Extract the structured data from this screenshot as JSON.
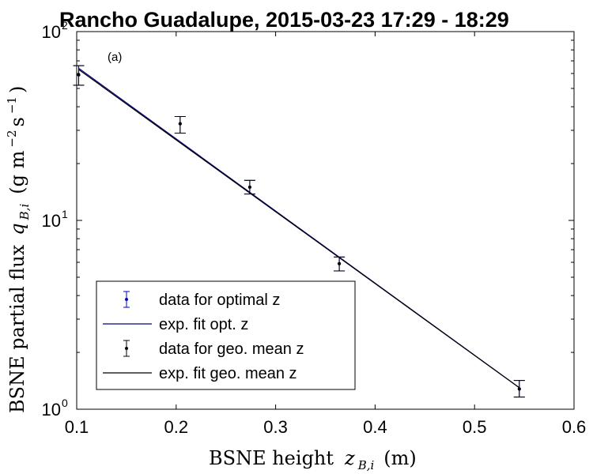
{
  "chart_data": {
    "type": "scatter",
    "title": "Rancho Guadalupe, 2015-03-23 17:29 - 18:29",
    "panel_label": "(a)",
    "xlabel": {
      "main": "BSNE height",
      "symbol": "z",
      "subscript": "B,i",
      "unit": "(m)"
    },
    "ylabel": {
      "main": "BSNE partial flux",
      "symbol": "q",
      "subscript": "B,i",
      "unit_open": "(g m",
      "unit_exp1": "−2",
      "unit_mid": " s",
      "unit_exp2": "−1",
      "unit_close": ")"
    },
    "xlim": [
      0.1,
      0.6
    ],
    "ylim": [
      1,
      100
    ],
    "yscale": "log",
    "xticks": [
      0.1,
      0.2,
      0.3,
      0.4,
      0.5,
      0.6
    ],
    "xtick_labels": [
      "0.1",
      "0.2",
      "0.3",
      "0.4",
      "0.5",
      "0.6"
    ],
    "yticks": [
      1,
      10,
      100
    ],
    "ytick_base": [
      "10",
      "10",
      "10"
    ],
    "ytick_exp": [
      "0",
      "1",
      "2"
    ],
    "grid": false,
    "legend_position": "bottom-left",
    "series": [
      {
        "name": "data for optimal z",
        "kind": "errorbar",
        "color": "#0000cc",
        "points": [
          {
            "x": 0.102,
            "y": 59,
            "ylo": 52,
            "yhi": 66
          },
          {
            "x": 0.204,
            "y": 32.5,
            "ylo": 29,
            "yhi": 35.5
          },
          {
            "x": 0.274,
            "y": 15.0,
            "ylo": 13.8,
            "yhi": 16.3
          },
          {
            "x": 0.364,
            "y": 5.9,
            "ylo": 5.4,
            "yhi": 6.4
          },
          {
            "x": 0.545,
            "y": 1.28,
            "ylo": 1.16,
            "yhi": 1.42
          }
        ]
      },
      {
        "name": "exp. fit opt. z",
        "kind": "line",
        "color": "#000080",
        "x": [
          0.102,
          0.545
        ],
        "y": [
          64,
          1.3
        ]
      },
      {
        "name": "data for geo. mean z",
        "kind": "errorbar",
        "color": "#000000",
        "points": [
          {
            "x": 0.102,
            "y": 59,
            "ylo": 52,
            "yhi": 66
          },
          {
            "x": 0.204,
            "y": 32.5,
            "ylo": 29,
            "yhi": 35.5
          },
          {
            "x": 0.274,
            "y": 15.0,
            "ylo": 13.8,
            "yhi": 16.3
          },
          {
            "x": 0.364,
            "y": 5.9,
            "ylo": 5.4,
            "yhi": 6.4
          },
          {
            "x": 0.545,
            "y": 1.28,
            "ylo": 1.16,
            "yhi": 1.42
          }
        ]
      },
      {
        "name": "exp. fit geo. mean z",
        "kind": "line",
        "color": "#000000",
        "x": [
          0.102,
          0.545
        ],
        "y": [
          63,
          1.3
        ]
      }
    ]
  }
}
